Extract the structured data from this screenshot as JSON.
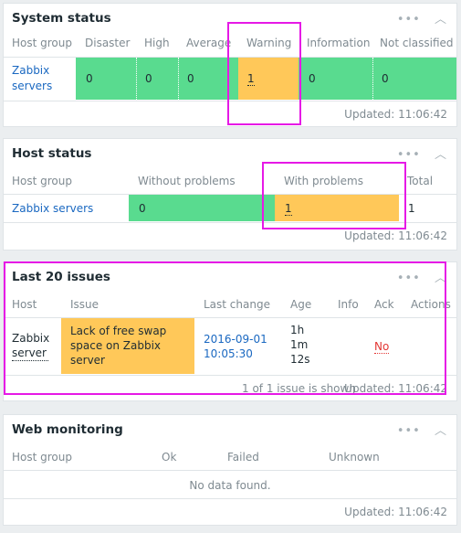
{
  "system_status": {
    "title": "System status",
    "headers": [
      "Host group",
      "Disaster",
      "High",
      "Average",
      "Warning",
      "Information",
      "Not classified"
    ],
    "row": {
      "host_group": "Zabbix servers",
      "disaster": "0",
      "high": "0",
      "average": "0",
      "warning": "1",
      "information": "0",
      "not_classified": "0"
    },
    "updated": "Updated: 11:06:42"
  },
  "host_status": {
    "title": "Host status",
    "headers": [
      "Host group",
      "Without problems",
      "With problems",
      "Total"
    ],
    "row": {
      "host_group": "Zabbix servers",
      "without_problems": "0",
      "with_problems": "1",
      "total": "1"
    },
    "updated": "Updated: 11:06:42"
  },
  "last_issues": {
    "title": "Last 20 issues",
    "headers": [
      "Host",
      "Issue",
      "Last change",
      "Age",
      "Info",
      "Ack",
      "Actions"
    ],
    "row": {
      "host": "Zabbix server",
      "issue": "Lack of free swap space on Zabbix server",
      "last_change_date": "2016-09-01",
      "last_change_time": "10:05:30",
      "age": [
        "1h",
        "1m",
        "12s"
      ],
      "ack": "No"
    },
    "shown": "1 of 1 issue is shown",
    "updated": "Updated: 11:06:42"
  },
  "web_monitoring": {
    "title": "Web monitoring",
    "headers": [
      "Host group",
      "Ok",
      "Failed",
      "Unknown"
    ],
    "empty": "No data found.",
    "updated": "Updated: 11:06:42"
  },
  "controls": {
    "menu": "•••",
    "collapse": "︿"
  },
  "colors": {
    "ok": "#59db8f",
    "warning": "#ffc859",
    "highlight": "#e619e6",
    "link": "#1a68c1"
  }
}
